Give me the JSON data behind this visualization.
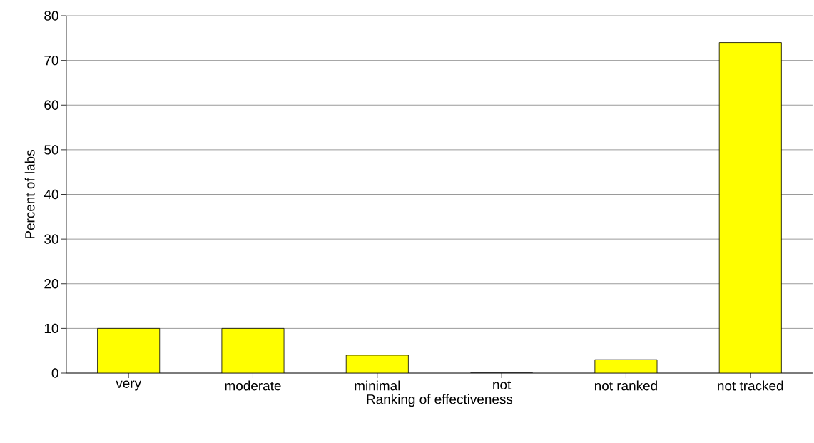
{
  "chart_data": {
    "type": "bar",
    "xlabel": "Ranking of effectiveness",
    "ylabel": "Percent of labs",
    "categories": [
      "very",
      "moderate",
      "minimal",
      "not",
      "not ranked",
      "not tracked"
    ],
    "values": [
      10,
      10,
      4,
      0,
      3,
      74
    ],
    "color": "#ffff00",
    "ylim": [
      0,
      80
    ],
    "yticks": [
      0,
      10,
      20,
      30,
      40,
      50,
      60,
      70,
      80
    ],
    "grid": "y"
  }
}
